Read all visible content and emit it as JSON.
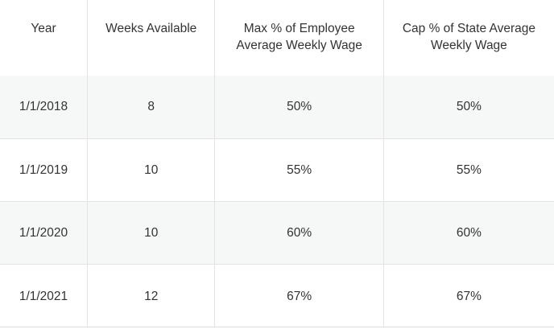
{
  "table": {
    "headers": [
      "Year",
      "Weeks Available",
      "Max % of Employee Average Weekly Wage",
      "Cap % of State Average Weekly Wage"
    ],
    "rows": [
      [
        "1/1/2018",
        "8",
        "50%",
        "50%"
      ],
      [
        "1/1/2019",
        "10",
        "55%",
        "55%"
      ],
      [
        "1/1/2020",
        "10",
        "60%",
        "60%"
      ],
      [
        "1/1/2021",
        "12",
        "67%",
        "67%"
      ]
    ]
  },
  "colors": {
    "text": "#333333",
    "grid": "#e3e3e3",
    "shaded_row": "#f6f8f7",
    "background": "#ffffff"
  }
}
